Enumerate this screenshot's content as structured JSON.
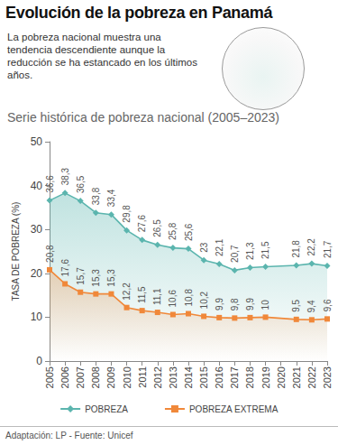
{
  "chart_data": {
    "type": "area",
    "title": "Evolución de la pobreza en Panamá",
    "description": "La pobreza nacional muestra una tendencia descendiente aunque la reducción se ha estancado en los últimos años.",
    "subtitle": "Serie histórica de pobreza nacional (2005–2023)",
    "y_label": "TASA DE POBREZA (%)",
    "source": "Adaptación: LP - Fuente: Unicef",
    "categories": [
      "2005",
      "2006",
      "2007",
      "2008",
      "2009",
      "2010",
      "2011",
      "2012",
      "2013",
      "2014",
      "2015",
      "2016",
      "2017",
      "2018",
      "2019",
      "2020",
      "2021",
      "2022",
      "2023"
    ],
    "series": [
      {
        "name": "POBREZA",
        "color": "#5bb5ae",
        "marker": "diamond",
        "line_style": "solid",
        "values": [
          36.6,
          38.3,
          36.5,
          33.8,
          33.4,
          29.8,
          27.6,
          26.5,
          25.8,
          25.6,
          23,
          22.1,
          20.7,
          21.3,
          21.5,
          null,
          21.8,
          22.2,
          21.7
        ],
        "value_labels": [
          "36,6",
          "38,3",
          "36,5",
          "33,8",
          "33,4",
          "29,8",
          "27,6",
          "26,5",
          "25,8",
          "25,6",
          "23",
          "22,1",
          "20,7",
          "21,3",
          "21,5",
          null,
          "21,8",
          "22,2",
          "21,7"
        ]
      },
      {
        "name": "POBREZA EXTREMA",
        "color": "#f0883a",
        "marker": "square",
        "line_style": "solid",
        "values": [
          20.8,
          17.6,
          15.7,
          15.3,
          15.3,
          12.2,
          11.5,
          11.1,
          10.6,
          10.8,
          10.2,
          9.9,
          9.8,
          9.9,
          10,
          null,
          9.5,
          9.4,
          9.6
        ],
        "value_labels": [
          "20,8",
          "17,6",
          "15,7",
          "15,3",
          "15,3",
          "12,2",
          "11,5",
          "11,1",
          "10,6",
          "10,8",
          "10,2",
          "9,9",
          "9,8",
          "9,9",
          "10",
          null,
          "9,5",
          "9,4",
          "9,6"
        ]
      }
    ],
    "ylim": [
      0,
      50
    ],
    "yticks": [
      0,
      10,
      20,
      30,
      40,
      50
    ],
    "grid": false,
    "legend": "bottom",
    "data_labels": true
  }
}
